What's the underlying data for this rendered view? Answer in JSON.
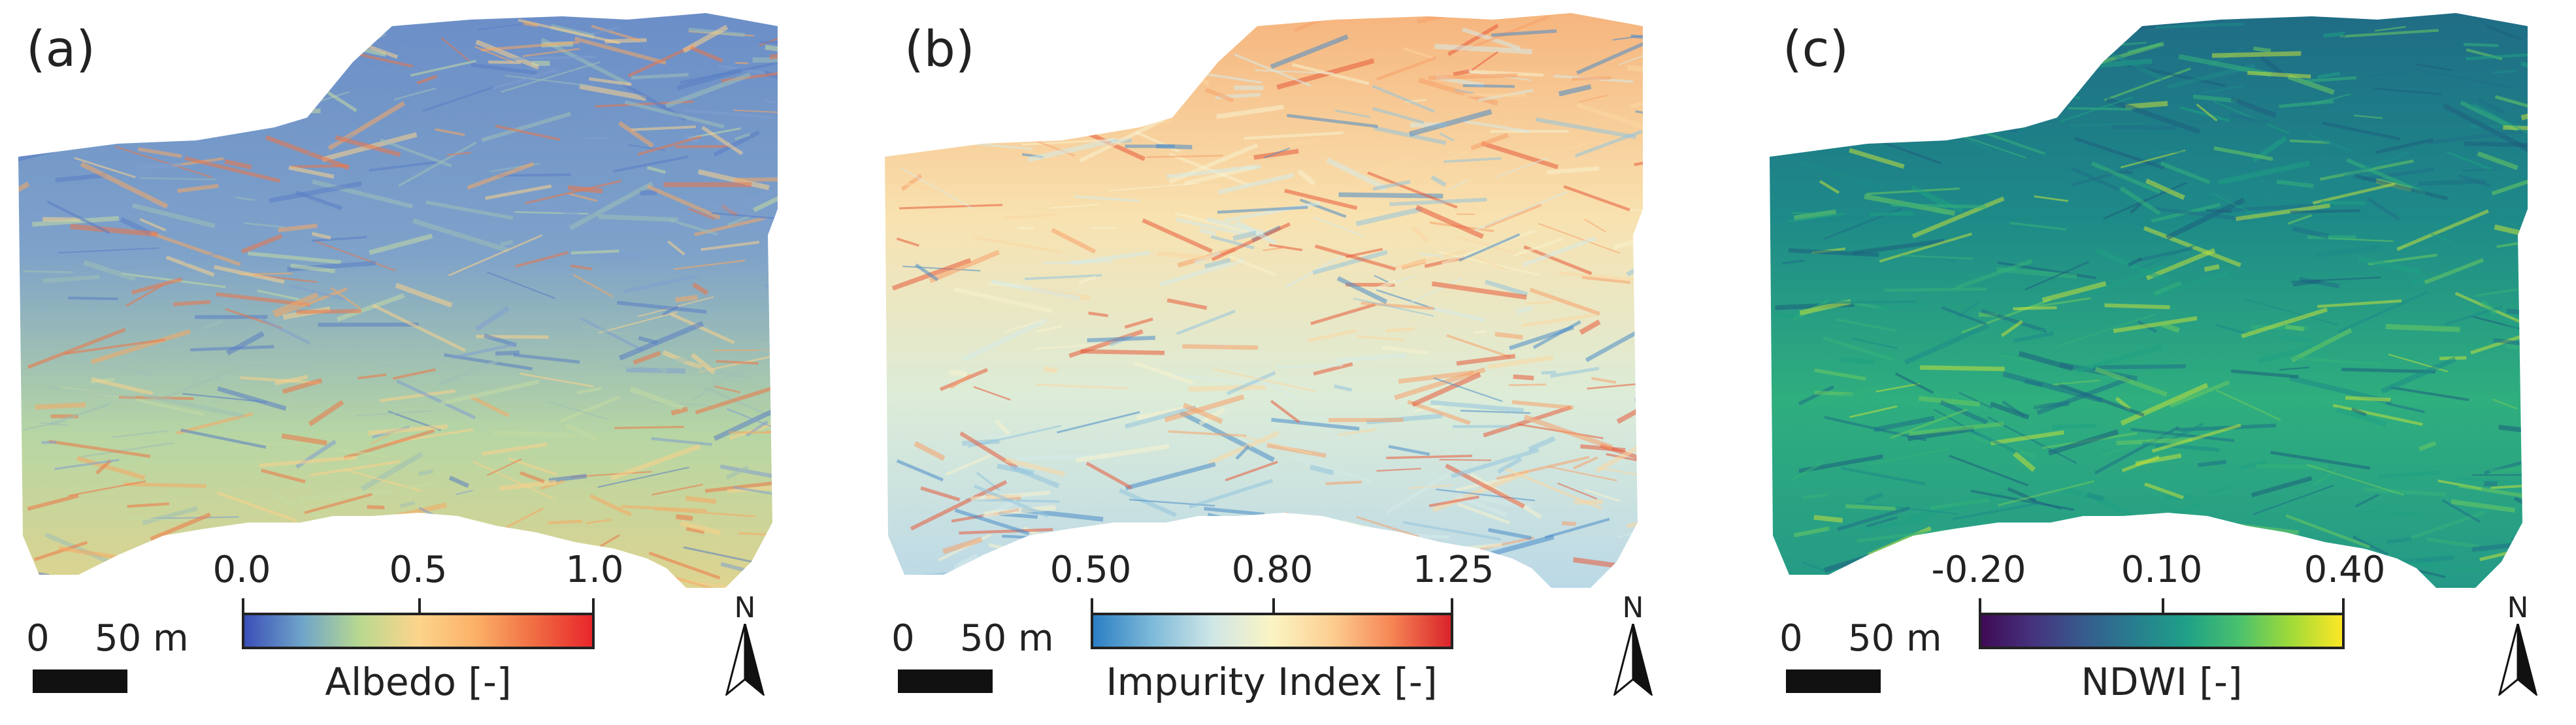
{
  "panels": [
    {
      "label": "(a)",
      "colorbar": {
        "ticks": [
          "0.0",
          "0.5",
          "1.0"
        ],
        "title": "Albedo [-]",
        "colors": [
          "#3b4fb8",
          "#6fa5c9",
          "#b9d98f",
          "#fdd48c",
          "#fbb067",
          "#f06d43",
          "#e8262b"
        ]
      },
      "scale": {
        "start": "0",
        "end": "50 m"
      },
      "north": "N",
      "palette": [
        "#5a7ec4",
        "#7f9fcf",
        "#9fc0b7",
        "#c4dba2",
        "#fbd18a",
        "#f7a862",
        "#ef7545"
      ]
    },
    {
      "label": "(b)",
      "colorbar": {
        "ticks": [
          "0.50",
          "0.80",
          "1.25"
        ],
        "title": "Impurity Index [-]",
        "colors": [
          "#2b7fc4",
          "#7fbad9",
          "#cfe6e6",
          "#fbf4c3",
          "#fcce91",
          "#f68655",
          "#d9232a"
        ]
      },
      "scale": {
        "start": "0",
        "end": "50 m"
      },
      "north": "N",
      "palette": [
        "#4a8dc9",
        "#93c4de",
        "#d6ebe9",
        "#f7f2cd",
        "#fcd7a3",
        "#f7a06a",
        "#e85a3a"
      ]
    },
    {
      "label": "(c)",
      "colorbar": {
        "ticks": [
          "-0.20",
          "0.10",
          "0.40"
        ],
        "title": "NDWI [-]",
        "colors": [
          "#3f0a55",
          "#46337e",
          "#365c8d",
          "#277f8e",
          "#1fa187",
          "#4ac16d",
          "#a0da39",
          "#fde725"
        ]
      },
      "scale": {
        "start": "0",
        "end": "50 m"
      },
      "north": "N",
      "palette": [
        "#1d5f7e",
        "#1f6f86",
        "#1d8a88",
        "#1fa184",
        "#34b27a",
        "#6ccb5f",
        "#c3e03a"
      ]
    }
  ]
}
